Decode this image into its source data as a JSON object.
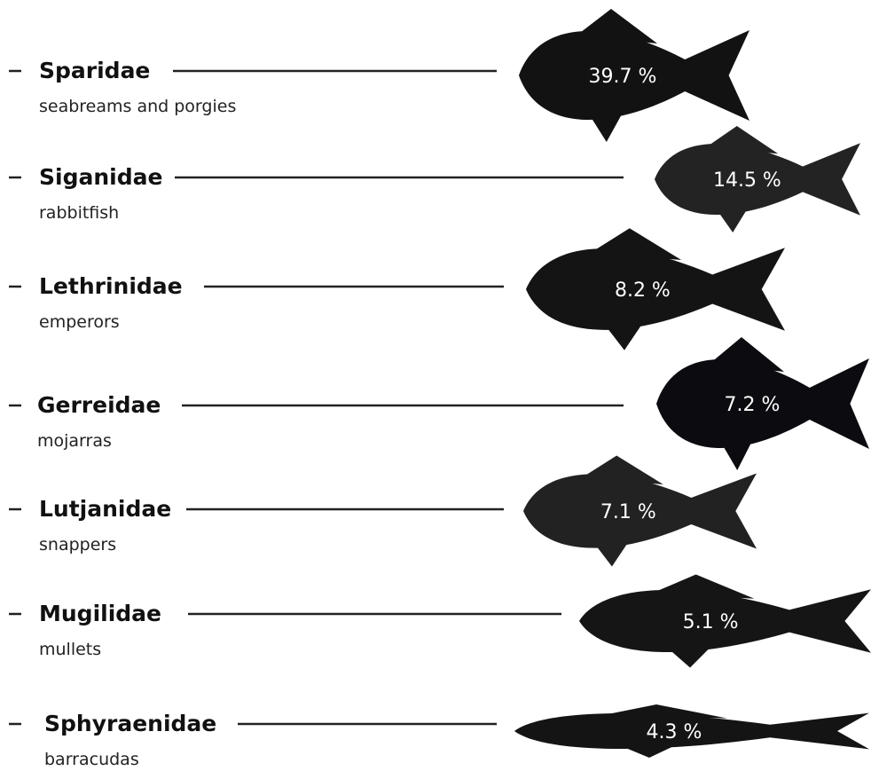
{
  "items": [
    {
      "name": "Sparidae",
      "common_name": "seabreams and porgies",
      "percent": "39.7 %"
    },
    {
      "name": "Siganidae",
      "common_name": "rabbitfish",
      "percent": "14.5 %"
    },
    {
      "name": "Lethrinidae",
      "common_name": "emperors",
      "percent": "8.2 %"
    },
    {
      "name": "Gerreidae",
      "common_name": "mojarras",
      "percent": "7.2 %"
    },
    {
      "name": "Lutjanidae",
      "common_name": "snappers",
      "percent": "7.1 %"
    },
    {
      "name": "Mugilidae",
      "common_name": "mullets",
      "percent": "5.1 %"
    },
    {
      "name": "Sphyraenidae",
      "common_name": "barracudas",
      "percent": "4.3 %"
    }
  ]
}
